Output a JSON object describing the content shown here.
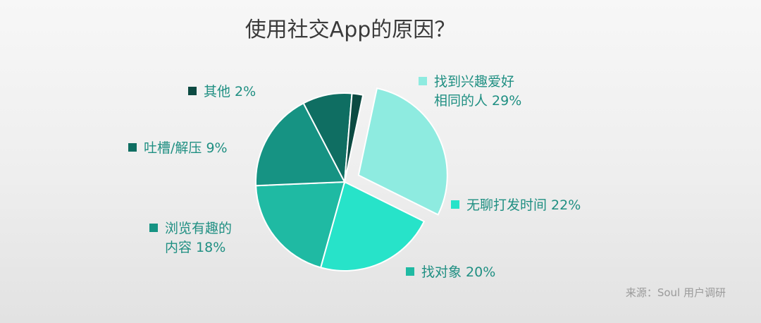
{
  "chart_data": {
    "type": "pie",
    "title": "使用社交App的原因？",
    "source": "来源：Soul 用户调研",
    "slices": [
      {
        "label": "找到兴趣爱好相同的人",
        "label_lines": [
          "找到兴趣爱好",
          "相同的人 29%"
        ],
        "value": 29,
        "color": "#8eebe0",
        "exploded": true
      },
      {
        "label": "无聊打发时间",
        "label_lines": [
          "无聊打发时间 22%"
        ],
        "value": 22,
        "color": "#27e3c9"
      },
      {
        "label": "找对象",
        "label_lines": [
          "找对象 20%"
        ],
        "value": 20,
        "color": "#1fbaa3"
      },
      {
        "label": "浏览有趣的内容",
        "label_lines": [
          "浏览有趣的",
          "内容 18%"
        ],
        "value": 18,
        "color": "#169383"
      },
      {
        "label": "吐槽/解压",
        "label_lines": [
          "吐槽/解压 9%"
        ],
        "value": 9,
        "color": "#0f6e62"
      },
      {
        "label": "其他",
        "label_lines": [
          "其他 2%"
        ],
        "value": 2,
        "color": "#0c4a42"
      }
    ],
    "legend": "labels beside slices"
  }
}
